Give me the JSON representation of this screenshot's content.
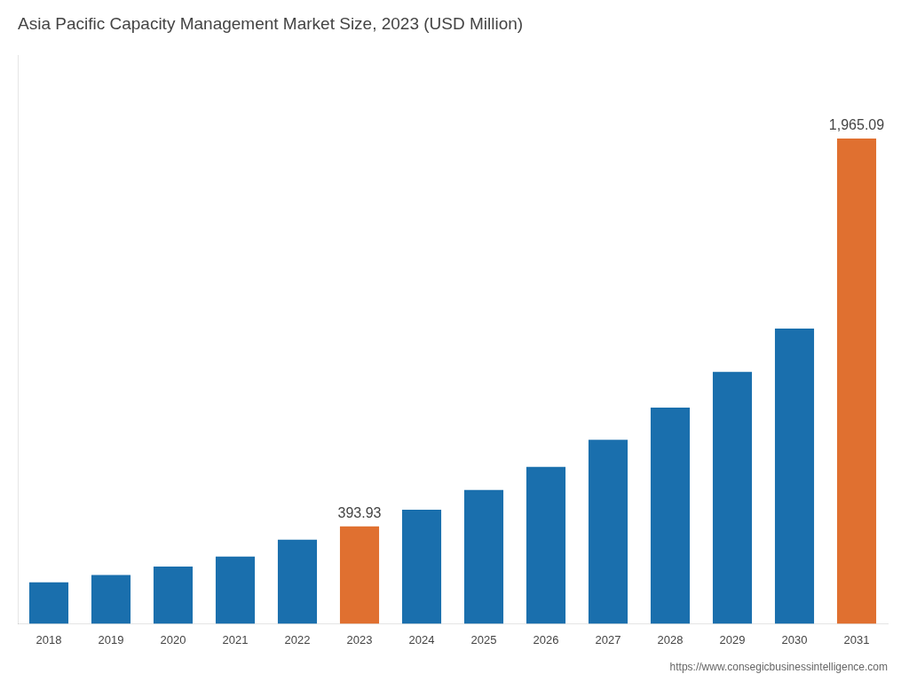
{
  "chart_data": {
    "type": "bar",
    "title": "Asia Pacific Capacity Management Market Size, 2023 (USD Million)",
    "categories": [
      "2018",
      "2019",
      "2020",
      "2021",
      "2022",
      "2023",
      "2024",
      "2025",
      "2026",
      "2027",
      "2028",
      "2029",
      "2030",
      "2031"
    ],
    "values": [
      168,
      197,
      232,
      272,
      340,
      393.93,
      462,
      542,
      635,
      745,
      875,
      1020,
      1195,
      1965.09
    ],
    "colors": [
      "#1a6fad",
      "#1a6fad",
      "#1a6fad",
      "#1a6fad",
      "#1a6fad",
      "#e07030",
      "#1a6fad",
      "#1a6fad",
      "#1a6fad",
      "#1a6fad",
      "#1a6fad",
      "#1a6fad",
      "#1a6fad",
      "#e07030"
    ],
    "data_labels": true,
    "value_labels": [
      null,
      null,
      null,
      null,
      null,
      "393.93",
      null,
      null,
      null,
      null,
      null,
      null,
      null,
      "1,965.09"
    ],
    "ylim": [
      0,
      2300
    ],
    "tick_labels": "x",
    "grid": false,
    "annotations": [
      "https://www.consegicbusinessintelligence.com"
    ]
  }
}
